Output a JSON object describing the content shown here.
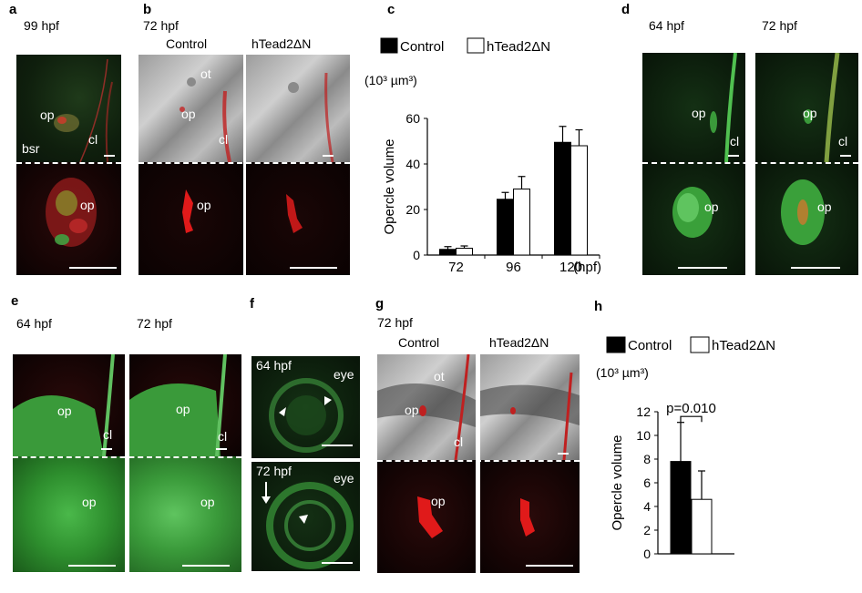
{
  "panels": {
    "a": {
      "letter": "a",
      "time": "99 hpf",
      "labels": {
        "op_top": "op",
        "bsr": "bsr",
        "cl": "cl",
        "op_bottom": "op"
      }
    },
    "b": {
      "letter": "b",
      "time": "72 hpf",
      "col1": "Control",
      "col2": "hTead2ΔN",
      "labels": {
        "ot": "ot",
        "op_top": "op",
        "cl": "cl",
        "op_bottom": "op"
      }
    },
    "c": {
      "letter": "c"
    },
    "d": {
      "letter": "d",
      "time1": "64 hpf",
      "time2": "72 hpf",
      "labels": {
        "op1": "op",
        "cl1": "cl",
        "op2": "op",
        "cl2": "cl",
        "op3": "op",
        "op4": "op"
      }
    },
    "e": {
      "letter": "e",
      "time1": "64 hpf",
      "time2": "72 hpf",
      "labels": {
        "op1": "op",
        "cl1": "cl",
        "op2": "op",
        "cl2": "cl",
        "op3": "op",
        "op4": "op"
      }
    },
    "f": {
      "letter": "f",
      "time1": "64 hpf",
      "time2": "72 hpf",
      "eye1": "eye",
      "eye2": "eye"
    },
    "g": {
      "letter": "g",
      "time": "72 hpf",
      "col1": "Control",
      "col2": "hTead2ΔN",
      "labels": {
        "ot": "ot",
        "op_top": "op",
        "cl": "cl",
        "op_bottom": "op"
      }
    },
    "h": {
      "letter": "h"
    }
  },
  "chart_data": [
    {
      "id": "c",
      "type": "bar",
      "categories": [
        "72",
        "96",
        "120"
      ],
      "xunit": "(hpf)",
      "ylabel": "Opercle volume",
      "unit": "(10³ µm³)",
      "ylim": [
        0,
        60
      ],
      "yticks": [
        0,
        20,
        40,
        60
      ],
      "legend": [
        "Control",
        "hTead2ΔN"
      ],
      "series": [
        {
          "name": "Control",
          "color": "#000000",
          "values": [
            2.5,
            24.5,
            49.5
          ],
          "errors": [
            1.2,
            3.0,
            7.0
          ]
        },
        {
          "name": "hTead2ΔN",
          "color": "#ffffff",
          "values": [
            3.0,
            29.0,
            48.0
          ],
          "errors": [
            1.0,
            5.5,
            7.0
          ]
        }
      ]
    },
    {
      "id": "h",
      "type": "bar",
      "categories": [
        ""
      ],
      "ylabel": "Opercle volume",
      "unit": "(10³ µm³)",
      "ylim": [
        0,
        12
      ],
      "yticks": [
        0,
        2,
        4,
        6,
        8,
        10,
        12
      ],
      "legend": [
        "Control",
        "hTead2ΔN"
      ],
      "annotation": "p=0.010",
      "series": [
        {
          "name": "Control",
          "color": "#000000",
          "values": [
            7.8
          ],
          "errors": [
            3.3
          ]
        },
        {
          "name": "hTead2ΔN",
          "color": "#ffffff",
          "values": [
            4.6
          ],
          "errors": [
            2.4
          ]
        }
      ]
    }
  ]
}
